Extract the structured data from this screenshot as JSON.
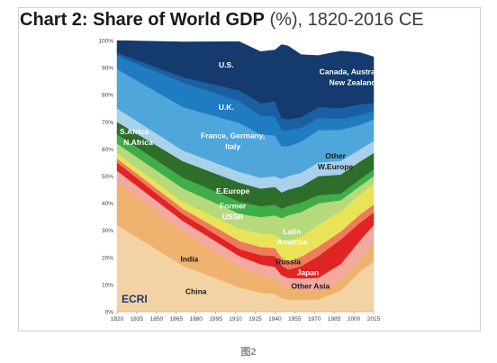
{
  "title_bold": "Chart 2: Share of World GDP",
  "title_light": " (%), 1820-2016 CE",
  "caption": "图2",
  "logo": "ECRI",
  "chart_data": {
    "type": "area",
    "stacked": true,
    "x": [
      1820,
      1870,
      1913,
      1929,
      1940,
      1945,
      1950,
      1960,
      1973,
      1990,
      2005,
      2016
    ],
    "xticks": [
      "1820",
      "1835",
      "1850",
      "1865",
      "1880",
      "1895",
      "1910",
      "1925",
      "1940",
      "1955",
      "1970",
      "1985",
      "2000",
      "2015"
    ],
    "yticks": [
      "0%",
      "10%",
      "20%",
      "30%",
      "40%",
      "50%",
      "60%",
      "70%",
      "80%",
      "90%",
      "100%"
    ],
    "ylim": [
      0,
      100
    ],
    "series": [
      {
        "name": "China",
        "color": "#f3d3a3",
        "values": [
          32,
          17,
          9,
          7,
          6.5,
          5,
          4.5,
          4.5,
          4.5,
          7.8,
          15,
          18.5
        ]
      },
      {
        "name": "India",
        "color": "#efb26e",
        "values": [
          16,
          12.5,
          7.5,
          6.5,
          6,
          5,
          4.5,
          3.8,
          3,
          3.8,
          4.5,
          6.5
        ]
      },
      {
        "name": "Other Asia",
        "color": "#f4a9a0",
        "values": [
          4,
          4,
          4,
          4,
          4,
          3.5,
          3.5,
          4,
          5,
          6,
          7,
          7
        ]
      },
      {
        "name": "Japan",
        "color": "#e02424",
        "values": [
          3,
          2.5,
          2.6,
          3.4,
          4,
          3.5,
          3,
          4.5,
          8,
          9,
          6.5,
          4.5
        ]
      },
      {
        "name": "Russia",
        "color": "#ee7b5c",
        "values": [
          1.5,
          2,
          3,
          3,
          3,
          3,
          3,
          3.5,
          3.5,
          3,
          3,
          3
        ]
      },
      {
        "name": "Latin America",
        "color": "#e9e35a",
        "values": [
          2,
          2.5,
          4.5,
          5,
          5,
          6.5,
          7.5,
          7.5,
          8,
          7.5,
          7.5,
          7.5
        ]
      },
      {
        "name": "Former USSR",
        "color": "#b6d97c",
        "values": [
          3.5,
          5,
          5.5,
          6,
          7,
          8,
          9.5,
          9,
          8,
          4,
          3,
          3
        ]
      },
      {
        "name": "E.Europe",
        "color": "#3fae49",
        "values": [
          3.5,
          4,
          4.5,
          4,
          4,
          3.5,
          3.5,
          3.5,
          3,
          2.5,
          2.5,
          2.5
        ]
      },
      {
        "name": "Other W.Europe",
        "color": "#2e6e2a",
        "values": [
          4.5,
          6,
          7,
          6.5,
          6.5,
          6,
          6,
          6,
          7,
          7,
          6.5,
          6
        ]
      },
      {
        "name": "S.Africa / N.Africa",
        "color": "#a9d1ea",
        "values": [
          5,
          4,
          4,
          4,
          4,
          5,
          5,
          5,
          5,
          5,
          4.5,
          4.5
        ]
      },
      {
        "name": "France, Germany, Italy",
        "color": "#4ea6da",
        "values": [
          14.5,
          16,
          18,
          16,
          15,
          12,
          11,
          11.5,
          12,
          11.5,
          9,
          8
        ]
      },
      {
        "name": "U.K.",
        "color": "#1f7cc0",
        "values": [
          5,
          9,
          8,
          7,
          7,
          6,
          6,
          5,
          4.5,
          4,
          3.5,
          3
        ]
      },
      {
        "name": "Canada, Australia, New Zealand",
        "color": "#1b5fa3",
        "values": [
          1,
          2,
          4,
          4.5,
          5.5,
          4.5,
          4,
          4,
          4,
          4,
          4,
          3
        ]
      },
      {
        "name": "U.S.",
        "color": "#143a6e",
        "values": [
          4.5,
          13,
          18,
          19,
          19,
          27,
          27,
          23,
          19,
          21,
          19,
          17
        ]
      }
    ],
    "labels": [
      {
        "text": "U.S.",
        "x": 1903,
        "y": 90,
        "color": "#ffffff"
      },
      {
        "text": "Canada, Australia,",
        "x": 1999,
        "y": 87.5,
        "color": "#ffffff"
      },
      {
        "text": "New Zealand",
        "x": 1999,
        "y": 83.5,
        "color": "#ffffff"
      },
      {
        "text": "U.K.",
        "x": 1903,
        "y": 74.5,
        "color": "#ffffff"
      },
      {
        "text": "S.Africa",
        "x": 1833,
        "y": 65.5,
        "color": "#ffffff"
      },
      {
        "text": "N.Africa",
        "x": 1836,
        "y": 61.5,
        "color": "#ffffff"
      },
      {
        "text": "France, Germany,",
        "x": 1908,
        "y": 64,
        "color": "#ffffff"
      },
      {
        "text": "Italy",
        "x": 1908,
        "y": 60,
        "color": "#ffffff"
      },
      {
        "text": "Other",
        "x": 1986,
        "y": 56.5,
        "color": "#1a1a1a"
      },
      {
        "text": "W.Europe",
        "x": 1986,
        "y": 52.5,
        "color": "#1a1a1a"
      },
      {
        "text": "E.Europe",
        "x": 1908,
        "y": 43.5,
        "color": "#ffffff"
      },
      {
        "text": "Former",
        "x": 1908,
        "y": 38,
        "color": "#ffffff"
      },
      {
        "text": "USSR",
        "x": 1908,
        "y": 34,
        "color": "#ffffff"
      },
      {
        "text": "Latin",
        "x": 1953,
        "y": 28.5,
        "color": "#ffffff"
      },
      {
        "text": "America",
        "x": 1953,
        "y": 24.8,
        "color": "#ffffff"
      },
      {
        "text": "Russia",
        "x": 1950,
        "y": 17.5,
        "color": "#1a1a1a"
      },
      {
        "text": "Japan",
        "x": 1965,
        "y": 13.5,
        "color": "#ffffff"
      },
      {
        "text": "Other Asia",
        "x": 1967,
        "y": 8.5,
        "color": "#1a1a1a"
      },
      {
        "text": "India",
        "x": 1875,
        "y": 18.5,
        "color": "#1a1a1a"
      },
      {
        "text": "China",
        "x": 1880,
        "y": 6.5,
        "color": "#1a1a1a"
      }
    ]
  }
}
